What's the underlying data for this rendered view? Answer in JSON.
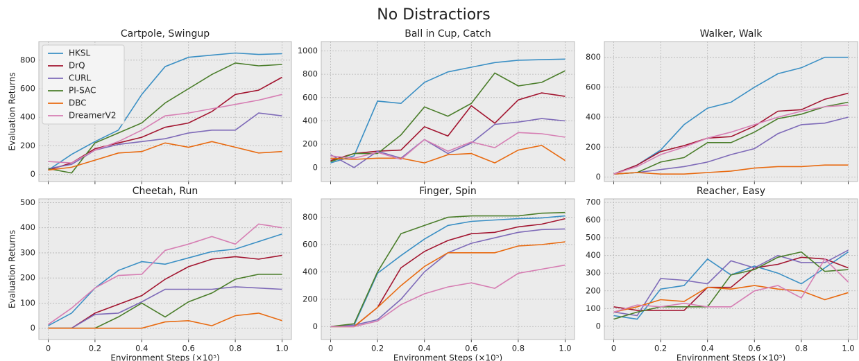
{
  "title": "No Distractiors",
  "chart_data": [
    {
      "type": "line",
      "title": "Cartpole, Swingup",
      "ylabel": "Evaluation Returns",
      "legend": "upper left",
      "grid": true,
      "xtick_labels": false,
      "x": [
        0,
        0.1,
        0.2,
        0.3,
        0.4,
        0.5,
        0.6,
        0.7,
        0.8,
        0.9,
        1
      ],
      "xlim": [
        -0.04,
        1.04
      ],
      "xticks": [
        0,
        0.2,
        0.4,
        0.6,
        0.8,
        {
          "value": 1,
          "label": "1.0"
        }
      ],
      "ylim": [
        -50,
        930
      ],
      "yticks": [
        0,
        200,
        400,
        600,
        800
      ],
      "series": [
        {
          "name": "HKSL",
          "color": "#3a8fc4",
          "values": [
            30,
            140,
            230,
            310,
            560,
            755,
            820,
            835,
            850,
            840,
            845
          ]
        },
        {
          "name": "DrQ",
          "color": "#a2142f",
          "values": [
            30,
            80,
            180,
            220,
            260,
            330,
            360,
            440,
            560,
            590,
            680
          ]
        },
        {
          "name": "CURL",
          "color": "#7e6ab8",
          "values": [
            40,
            70,
            170,
            210,
            230,
            250,
            290,
            310,
            310,
            430,
            410
          ]
        },
        {
          "name": "PI-SAC",
          "color": "#4a7d2a",
          "values": [
            40,
            10,
            220,
            290,
            360,
            500,
            600,
            700,
            780,
            760,
            770
          ]
        },
        {
          "name": "DBC",
          "color": "#e86a10",
          "values": [
            30,
            50,
            100,
            150,
            160,
            220,
            190,
            230,
            190,
            150,
            160
          ]
        },
        {
          "name": "DreamerV2",
          "color": "#d67eb3",
          "values": [
            90,
            80,
            170,
            230,
            310,
            410,
            430,
            460,
            490,
            520,
            560
          ]
        }
      ]
    },
    {
      "type": "line",
      "title": "Ball in Cup, Catch",
      "grid": true,
      "xtick_labels": false,
      "x": [
        0,
        0.1,
        0.2,
        0.3,
        0.4,
        0.5,
        0.6,
        0.7,
        0.8,
        0.9,
        1
      ],
      "xlim": [
        -0.04,
        1.04
      ],
      "xticks": [
        0,
        0.2,
        0.4,
        0.6,
        0.8,
        {
          "value": 1,
          "label": "1.0"
        }
      ],
      "ylim": [
        -120,
        1080
      ],
      "yticks": [
        0,
        200,
        400,
        600,
        800,
        1000
      ],
      "series": [
        {
          "color": "#3a8fc4",
          "values": [
            40,
            100,
            570,
            550,
            730,
            820,
            860,
            900,
            920,
            925,
            930
          ]
        },
        {
          "color": "#a2142f",
          "values": [
            60,
            120,
            140,
            150,
            350,
            270,
            530,
            380,
            580,
            640,
            610
          ]
        },
        {
          "color": "#7e6ab8",
          "values": [
            110,
            0,
            140,
            80,
            240,
            120,
            210,
            370,
            390,
            420,
            400
          ]
        },
        {
          "color": "#4a7d2a",
          "values": [
            50,
            120,
            120,
            280,
            520,
            440,
            550,
            810,
            700,
            730,
            830
          ]
        },
        {
          "color": "#e86a10",
          "values": [
            80,
            70,
            80,
            80,
            40,
            110,
            120,
            40,
            150,
            190,
            60
          ]
        },
        {
          "color": "#d67eb3",
          "values": [
            100,
            80,
            130,
            70,
            240,
            140,
            220,
            170,
            300,
            290,
            260
          ]
        }
      ]
    },
    {
      "type": "line",
      "title": "Walker, Walk",
      "grid": true,
      "xtick_labels": false,
      "x": [
        0,
        0.1,
        0.2,
        0.3,
        0.4,
        0.5,
        0.6,
        0.7,
        0.8,
        0.9,
        1
      ],
      "xlim": [
        -0.04,
        1.04
      ],
      "xticks": [
        0,
        0.2,
        0.4,
        0.6,
        0.8,
        {
          "value": 1,
          "label": "1.0"
        }
      ],
      "ylim": [
        -30,
        905
      ],
      "yticks": [
        0,
        200,
        400,
        600,
        800
      ],
      "series": [
        {
          "color": "#3a8fc4",
          "values": [
            20,
            80,
            180,
            350,
            460,
            500,
            600,
            690,
            730,
            800,
            800
          ]
        },
        {
          "color": "#a2142f",
          "values": [
            20,
            80,
            170,
            210,
            260,
            270,
            340,
            440,
            450,
            520,
            560
          ]
        },
        {
          "color": "#7e6ab8",
          "values": [
            20,
            30,
            50,
            70,
            100,
            150,
            190,
            290,
            350,
            360,
            400
          ]
        },
        {
          "color": "#4a7d2a",
          "values": [
            20,
            30,
            100,
            130,
            230,
            230,
            300,
            390,
            420,
            470,
            500
          ]
        },
        {
          "color": "#e86a10",
          "values": [
            20,
            30,
            20,
            20,
            30,
            40,
            60,
            70,
            70,
            80,
            80
          ]
        },
        {
          "color": "#d67eb3",
          "values": [
            20,
            70,
            150,
            200,
            260,
            300,
            350,
            400,
            440,
            470,
            480
          ]
        }
      ]
    },
    {
      "type": "line",
      "title": "Cheetah, Run",
      "ylabel": "Evaluation Returns",
      "xlabel": "Environment Steps (×10⁵)",
      "grid": true,
      "x": [
        0,
        0.1,
        0.2,
        0.3,
        0.4,
        0.5,
        0.6,
        0.7,
        0.8,
        0.9,
        1
      ],
      "xlim": [
        -0.04,
        1.04
      ],
      "xticks": [
        0,
        0.2,
        0.4,
        0.6,
        0.8,
        {
          "value": 1,
          "label": "1.0"
        }
      ],
      "ylim": [
        -45,
        515
      ],
      "yticks": [
        0,
        100,
        200,
        300,
        400,
        500
      ],
      "series": [
        {
          "color": "#3a8fc4",
          "values": [
            10,
            60,
            160,
            230,
            265,
            255,
            280,
            305,
            315,
            345,
            375
          ]
        },
        {
          "color": "#a2142f",
          "values": [
            0,
            0,
            60,
            95,
            130,
            195,
            245,
            275,
            285,
            275,
            290
          ]
        },
        {
          "color": "#7e6ab8",
          "values": [
            0,
            0,
            55,
            60,
            105,
            155,
            155,
            155,
            165,
            160,
            155
          ]
        },
        {
          "color": "#4a7d2a",
          "values": [
            0,
            0,
            0,
            45,
            100,
            45,
            105,
            140,
            195,
            215,
            215
          ]
        },
        {
          "color": "#e86a10",
          "values": [
            0,
            0,
            0,
            0,
            0,
            25,
            30,
            10,
            50,
            60,
            30
          ]
        },
        {
          "color": "#d67eb3",
          "values": [
            15,
            80,
            160,
            210,
            215,
            310,
            335,
            365,
            335,
            415,
            400
          ]
        }
      ]
    },
    {
      "type": "line",
      "title": "Finger, Spin",
      "xlabel": "Environment Steps (×10⁵)",
      "grid": true,
      "x": [
        0,
        0.1,
        0.2,
        0.3,
        0.4,
        0.5,
        0.6,
        0.7,
        0.8,
        0.9,
        1
      ],
      "xlim": [
        -0.04,
        1.04
      ],
      "xticks": [
        0,
        0.2,
        0.4,
        0.6,
        0.8,
        {
          "value": 1,
          "label": "1.0"
        }
      ],
      "ylim": [
        -95,
        935
      ],
      "yticks": [
        0,
        200,
        400,
        600,
        800
      ],
      "series": [
        {
          "color": "#3a8fc4",
          "values": [
            0,
            10,
            390,
            520,
            640,
            740,
            770,
            780,
            790,
            795,
            810
          ]
        },
        {
          "color": "#a2142f",
          "values": [
            0,
            0,
            140,
            430,
            550,
            630,
            680,
            690,
            730,
            750,
            790
          ]
        },
        {
          "color": "#7e6ab8",
          "values": [
            0,
            10,
            50,
            200,
            400,
            540,
            610,
            650,
            690,
            710,
            715
          ]
        },
        {
          "color": "#4a7d2a",
          "values": [
            0,
            20,
            400,
            680,
            740,
            800,
            810,
            810,
            810,
            830,
            835
          ]
        },
        {
          "color": "#e86a10",
          "values": [
            0,
            0,
            140,
            300,
            440,
            540,
            540,
            540,
            590,
            600,
            620
          ]
        },
        {
          "color": "#d67eb3",
          "values": [
            0,
            0,
            40,
            160,
            240,
            290,
            320,
            280,
            390,
            420,
            450
          ]
        }
      ]
    },
    {
      "type": "line",
      "title": "Reacher, Easy",
      "xlabel": "Environment Steps (×10⁵)",
      "grid": true,
      "x": [
        0,
        0.1,
        0.2,
        0.3,
        0.4,
        0.5,
        0.6,
        0.7,
        0.8,
        0.9,
        1
      ],
      "xlim": [
        -0.04,
        1.04
      ],
      "xticks": [
        0,
        0.2,
        0.4,
        0.6,
        0.8,
        {
          "value": 1,
          "label": "1.0"
        }
      ],
      "ylim": [
        -75,
        720
      ],
      "yticks": [
        0,
        100,
        200,
        300,
        400,
        500,
        600,
        700
      ],
      "series": [
        {
          "color": "#3a8fc4",
          "values": [
            60,
            40,
            210,
            230,
            380,
            290,
            340,
            300,
            240,
            330,
            420
          ]
        },
        {
          "color": "#a2142f",
          "values": [
            110,
            90,
            90,
            90,
            220,
            220,
            330,
            350,
            390,
            380,
            330
          ]
        },
        {
          "color": "#7e6ab8",
          "values": [
            80,
            60,
            270,
            260,
            240,
            370,
            330,
            400,
            360,
            360,
            430
          ]
        },
        {
          "color": "#4a7d2a",
          "values": [
            40,
            80,
            110,
            110,
            110,
            290,
            320,
            390,
            420,
            310,
            320
          ]
        },
        {
          "color": "#e86a10",
          "values": [
            80,
            110,
            150,
            140,
            220,
            210,
            230,
            210,
            200,
            150,
            190
          ]
        },
        {
          "color": "#d67eb3",
          "values": [
            80,
            120,
            110,
            130,
            110,
            110,
            200,
            230,
            160,
            380,
            250
          ]
        }
      ]
    }
  ]
}
